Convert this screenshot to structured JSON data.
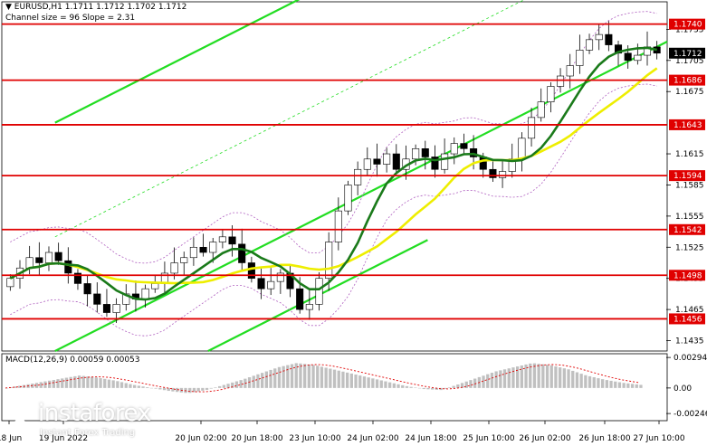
{
  "header": {
    "symbol_line": "EURUSD,H1  1.1711 1.1712 1.1702 1.1712",
    "channel_line": "Channel size = 96 Slope = 2.31",
    "macd_label": "MACD(12,26,9) 0.00059 0.00053"
  },
  "logo": {
    "brand": "instaforex",
    "tagline": "Instant Forex Trading"
  },
  "colors": {
    "background": "#ffffff",
    "level_line": "#e00000",
    "level_label_bg": "#e00000",
    "level_label_text": "#ffffff",
    "channel": "#22dd22",
    "ma_fast": "#1a7a1a",
    "ma_slow": "#eeee00",
    "bollinger": "#b060c0",
    "macd_hist": "#c0c0c0",
    "macd_signal": "#e00000",
    "price_tag_bg": "#000000"
  },
  "chart_data": {
    "type": "candlestick",
    "symbol": "EURUSD",
    "timeframe": "H1",
    "ohlc_last": {
      "open": 1.1711,
      "high": 1.1712,
      "low": 1.1702,
      "close": 1.1712
    },
    "current_price": 1.1712,
    "y_range": [
      1.1425,
      1.1758
    ],
    "y_ticks": [
      1.1735,
      1.1705,
      1.1675,
      1.1615,
      1.1585,
      1.1555,
      1.1525,
      1.1495,
      1.1465,
      1.1435
    ],
    "levels": [
      1.174,
      1.1686,
      1.1643,
      1.1594,
      1.1542,
      1.1498,
      1.1456
    ],
    "x_labels": [
      "18 Jun",
      "19 Jun 2022",
      "20 Jun 02:00",
      "20 Jun 18:00",
      "23 Jun 10:00",
      "24 Jun 02:00",
      "24 Jun 18:00",
      "25 Jun 10:00",
      "26 Jun 02:00",
      "26 Jun 18:00",
      "27 Jun 10:00"
    ],
    "close_path": [
      1.1495,
      1.1505,
      1.1515,
      1.151,
      1.152,
      1.1512,
      1.15,
      1.149,
      1.148,
      1.147,
      1.1462,
      1.147,
      1.148,
      1.1475,
      1.1485,
      1.149,
      1.15,
      1.151,
      1.1515,
      1.1525,
      1.152,
      1.153,
      1.1535,
      1.1528,
      1.151,
      1.1495,
      1.1485,
      1.1492,
      1.15,
      1.1485,
      1.1465,
      1.147,
      1.1495,
      1.153,
      1.156,
      1.1585,
      1.16,
      1.161,
      1.1605,
      1.1615,
      1.16,
      1.161,
      1.162,
      1.1612,
      1.16,
      1.1615,
      1.1625,
      1.162,
      1.1612,
      1.16,
      1.1592,
      1.1598,
      1.161,
      1.163,
      1.165,
      1.1665,
      1.168,
      1.169,
      1.17,
      1.1715,
      1.1725,
      1.173,
      1.172,
      1.1712,
      1.1705,
      1.171,
      1.1718,
      1.1712
    ],
    "macd": {
      "y_ticks": [
        0.00294,
        0.0,
        -0.00246
      ],
      "y_range": [
        -0.0028,
        0.0033
      ],
      "histogram_profile": [
        0.0,
        0.0003,
        0.0006,
        0.0009,
        0.0012,
        0.001,
        0.0007,
        0.0003,
        0.0,
        -0.0003,
        -0.0005,
        -0.0002,
        0.0003,
        0.0008,
        0.0014,
        0.002,
        0.0024,
        0.0022,
        0.0018,
        0.0014,
        0.001,
        0.0006,
        0.0002,
        -0.0001,
        -0.0002,
        0.0004,
        0.001,
        0.0016,
        0.002,
        0.0024,
        0.0022,
        0.0018,
        0.0012,
        0.0008,
        0.0005,
        0.0003
      ]
    }
  }
}
